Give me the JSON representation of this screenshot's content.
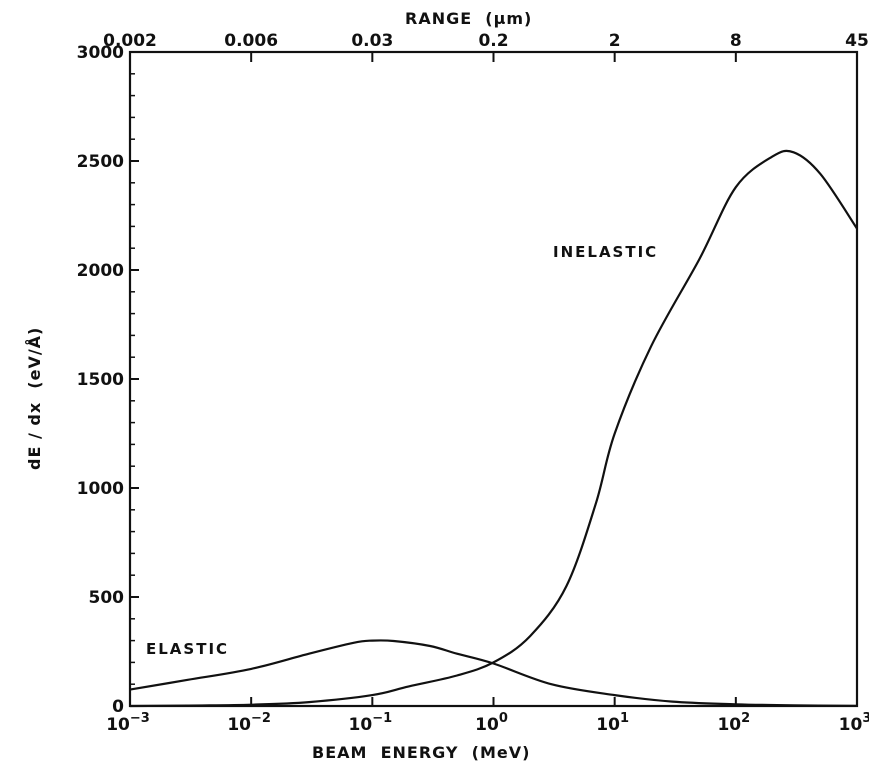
{
  "chart_data": {
    "type": "line",
    "title": "",
    "xlabel": "BEAM  ENERGY  (MeV)",
    "ylabel": "dE / dx  (eV/Å)",
    "top_xlabel": "RANGE  (μm)",
    "x_scale": "log",
    "xlim": [
      0.001,
      1000
    ],
    "ylim": [
      0,
      3000
    ],
    "grid": false,
    "x_tick_mantissa": "10",
    "x_ticks": [
      {
        "value": 0.001,
        "exp": "−3"
      },
      {
        "value": 0.01,
        "exp": "−2"
      },
      {
        "value": 0.1,
        "exp": "−1"
      },
      {
        "value": 1,
        "exp": "0"
      },
      {
        "value": 10,
        "exp": "1"
      },
      {
        "value": 100,
        "exp": "2"
      },
      {
        "value": 1000,
        "exp": "3"
      }
    ],
    "y_ticks": [
      0,
      500,
      1000,
      1500,
      2000,
      2500,
      3000
    ],
    "y_tick_labels": [
      "0",
      "500",
      "1000",
      "1500",
      "2000",
      "2500",
      "3000"
    ],
    "top_ticks": [
      {
        "label": "0.002",
        "energy": 0.001
      },
      {
        "label": "0.006",
        "energy": 0.01
      },
      {
        "label": "0.03",
        "energy": 0.1
      },
      {
        "label": "0.2",
        "energy": 1
      },
      {
        "label": "2",
        "energy": 10
      },
      {
        "label": "8",
        "energy": 100
      },
      {
        "label": "45",
        "energy": 1000
      }
    ],
    "series": [
      {
        "name": "INELASTIC",
        "points": [
          [
            0.001,
            0
          ],
          [
            0.003,
            2
          ],
          [
            0.01,
            6
          ],
          [
            0.03,
            18
          ],
          [
            0.1,
            50
          ],
          [
            0.2,
            90
          ],
          [
            0.5,
            140
          ],
          [
            1,
            200
          ],
          [
            2,
            320
          ],
          [
            4,
            550
          ],
          [
            7,
            930
          ],
          [
            10,
            1250
          ],
          [
            20,
            1650
          ],
          [
            50,
            2050
          ],
          [
            100,
            2380
          ],
          [
            200,
            2520
          ],
          [
            300,
            2540
          ],
          [
            500,
            2440
          ],
          [
            1000,
            2190
          ]
        ]
      },
      {
        "name": "ELASTIC",
        "points": [
          [
            0.001,
            75
          ],
          [
            0.003,
            120
          ],
          [
            0.01,
            170
          ],
          [
            0.03,
            240
          ],
          [
            0.07,
            290
          ],
          [
            0.1,
            300
          ],
          [
            0.15,
            298
          ],
          [
            0.3,
            275
          ],
          [
            0.5,
            240
          ],
          [
            1,
            195
          ],
          [
            3,
            100
          ],
          [
            10,
            50
          ],
          [
            30,
            20
          ],
          [
            100,
            8
          ],
          [
            300,
            3
          ],
          [
            1000,
            1
          ]
        ]
      }
    ],
    "annotations": [
      {
        "text": "INELASTIC",
        "near_series": "INELASTIC"
      },
      {
        "text": "ELASTIC",
        "near_series": "ELASTIC"
      }
    ]
  }
}
